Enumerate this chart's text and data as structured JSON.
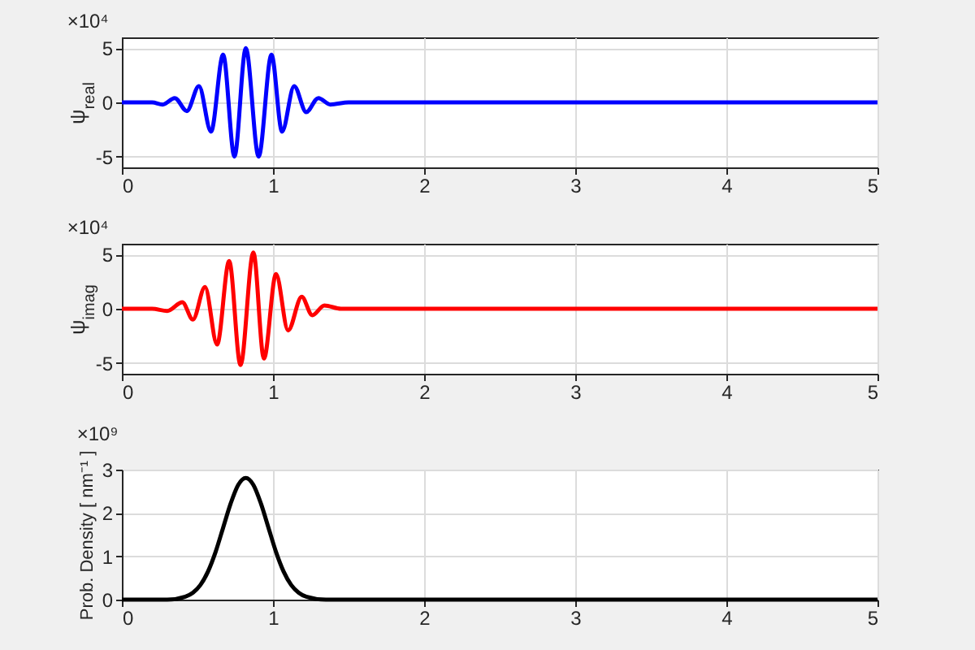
{
  "chart_data": [
    {
      "type": "line",
      "ylabel": "ψ$_{real}$",
      "annotations": [
        "×10⁴"
      ],
      "color": "#0000ff",
      "grid": true,
      "x": [
        0,
        0.1,
        0.2,
        0.27,
        0.35,
        0.43,
        0.51,
        0.59,
        0.67,
        0.745,
        0.82,
        0.905,
        0.99,
        1.06,
        1.14,
        1.22,
        1.3,
        1.38,
        1.5,
        2,
        5
      ],
      "values": [
        0,
        0,
        0,
        -0.2,
        0.4,
        -0.8,
        1.5,
        -2.7,
        4.4,
        -5,
        5,
        -5,
        4.4,
        -2.7,
        1.5,
        -0.9,
        0.4,
        -0.2,
        0,
        0,
        0
      ],
      "xlim": [
        0,
        5
      ],
      "xticks": [
        0,
        1,
        2,
        3,
        4,
        5
      ],
      "ylim": [
        -6,
        6
      ],
      "yticks": [
        -5,
        0,
        5
      ]
    },
    {
      "type": "line",
      "ylabel": "ψ$_{imag}$",
      "annotations": [
        "×10⁴"
      ],
      "color": "#ff0000",
      "grid": true,
      "x": [
        0,
        0.2,
        0.3,
        0.4,
        0.47,
        0.55,
        0.63,
        0.71,
        0.785,
        0.87,
        0.94,
        1.02,
        1.1,
        1.19,
        1.26,
        1.34,
        1.45,
        2,
        5
      ],
      "values": [
        0,
        0,
        -0.2,
        0.6,
        -1,
        2,
        -3.3,
        4.4,
        -5.2,
        5.2,
        -4.6,
        3.2,
        -2,
        1.1,
        -0.6,
        0.3,
        0,
        0,
        0
      ],
      "xlim": [
        0,
        5
      ],
      "xticks": [
        0,
        1,
        2,
        3,
        4,
        5
      ],
      "ylim": [
        -6,
        6
      ],
      "yticks": [
        -5,
        0,
        5
      ]
    },
    {
      "type": "line",
      "ylabel": "Prob. Density [ nm⁻¹ ]",
      "annotations": [
        "×10⁹"
      ],
      "color": "#000000",
      "grid": true,
      "x": [
        0,
        0.3,
        0.42,
        0.47,
        0.52,
        0.57,
        0.62,
        0.67,
        0.72,
        0.77,
        0.82,
        0.87,
        0.92,
        0.97,
        1.02,
        1.07,
        1.12,
        1.17,
        1.22,
        1.35,
        5
      ],
      "values": [
        0,
        0,
        0.07,
        0.16,
        0.34,
        0.65,
        1.1,
        1.66,
        2.22,
        2.65,
        2.81,
        2.65,
        2.22,
        1.66,
        1.1,
        0.65,
        0.34,
        0.16,
        0.07,
        0,
        0
      ],
      "xlim": [
        0,
        5
      ],
      "xticks": [
        0,
        1,
        2,
        3,
        4,
        5
      ],
      "ylim": [
        0,
        3
      ],
      "yticks": [
        0,
        1,
        2,
        3
      ]
    }
  ]
}
